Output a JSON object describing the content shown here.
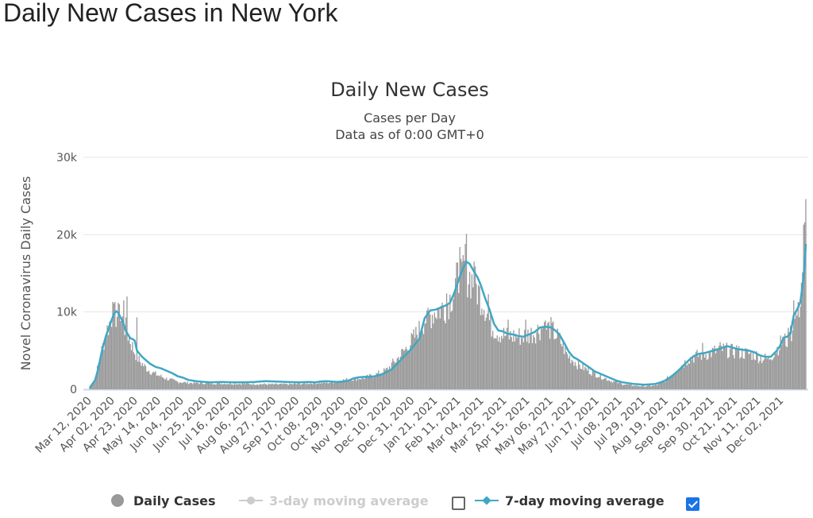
{
  "page": {
    "title": "Daily New Cases in New York"
  },
  "chart_data": {
    "type": "bar+line",
    "title": "Daily New Cases",
    "subtitle": [
      "Cases per Day",
      "Data as of 0:00 GMT+0"
    ],
    "ylabel": "Novel Coronavirus Daily Cases",
    "ylim": [
      0,
      30000
    ],
    "yticks": [
      0,
      10000,
      20000,
      30000
    ],
    "ytick_labels": [
      "0",
      "10k",
      "20k",
      "30k"
    ],
    "x_labels": [
      "Mar 12, 2020",
      "Apr 02, 2020",
      "Apr 23, 2020",
      "May 14, 2020",
      "Jun 04, 2020",
      "Jun 25, 2020",
      "Jul 16, 2020",
      "Aug 06, 2020",
      "Aug 27, 2020",
      "Sep 17, 2020",
      "Oct 08, 2020",
      "Oct 29, 2020",
      "Nov 19, 2020",
      "Dec 10, 2020",
      "Dec 31, 2020",
      "Jan 21, 2021",
      "Feb 11, 2021",
      "Mar 04, 2021",
      "Mar 25, 2021",
      "Apr 15, 2021",
      "May 06, 2021",
      "May 27, 2021",
      "Jun 17, 2021",
      "Jul 08, 2021",
      "Jul 29, 2021",
      "Aug 19, 2021",
      "Sep 09, 2021",
      "Sep 30, 2021",
      "Oct 21, 2021",
      "Nov 11, 2021",
      "Dec 02, 2021"
    ],
    "label_step_days": 21,
    "total_days": 653,
    "daily_cases_key_points": [
      [
        0,
        200
      ],
      [
        5,
        1500
      ],
      [
        10,
        4500
      ],
      [
        15,
        7500
      ],
      [
        20,
        9500
      ],
      [
        25,
        9800
      ],
      [
        30,
        9000
      ],
      [
        35,
        7200
      ],
      [
        40,
        5200
      ],
      [
        45,
        3800
      ],
      [
        50,
        3000
      ],
      [
        55,
        2400
      ],
      [
        60,
        2000
      ],
      [
        70,
        1400
      ],
      [
        80,
        1000
      ],
      [
        90,
        850
      ],
      [
        110,
        800
      ],
      [
        130,
        750
      ],
      [
        150,
        700
      ],
      [
        170,
        650
      ],
      [
        190,
        700
      ],
      [
        200,
        800
      ],
      [
        220,
        900
      ],
      [
        230,
        1200
      ],
      [
        240,
        1400
      ],
      [
        250,
        1500
      ],
      [
        260,
        1900
      ],
      [
        270,
        2500
      ],
      [
        280,
        4000
      ],
      [
        290,
        5700
      ],
      [
        300,
        7800
      ],
      [
        305,
        9200
      ],
      [
        315,
        10300
      ],
      [
        325,
        11000
      ],
      [
        330,
        12500
      ],
      [
        335,
        14500
      ],
      [
        340,
        15500
      ],
      [
        345,
        15000
      ],
      [
        350,
        14000
      ],
      [
        355,
        12500
      ],
      [
        360,
        11000
      ],
      [
        365,
        8500
      ],
      [
        372,
        7500
      ],
      [
        380,
        7000
      ],
      [
        395,
        7000
      ],
      [
        405,
        7500
      ],
      [
        412,
        8200
      ],
      [
        420,
        8000
      ],
      [
        428,
        6500
      ],
      [
        435,
        4500
      ],
      [
        445,
        3200
      ],
      [
        455,
        2400
      ],
      [
        465,
        1700
      ],
      [
        475,
        1100
      ],
      [
        485,
        700
      ],
      [
        495,
        500
      ],
      [
        505,
        400
      ],
      [
        515,
        500
      ],
      [
        522,
        900
      ],
      [
        530,
        2000
      ],
      [
        538,
        3000
      ],
      [
        545,
        4000
      ],
      [
        555,
        4500
      ],
      [
        565,
        4800
      ],
      [
        575,
        5300
      ],
      [
        585,
        5000
      ],
      [
        595,
        4800
      ],
      [
        605,
        4600
      ],
      [
        612,
        4100
      ],
      [
        618,
        4000
      ],
      [
        625,
        5200
      ],
      [
        630,
        6200
      ],
      [
        635,
        6500
      ],
      [
        640,
        8000
      ],
      [
        643,
        9500
      ],
      [
        646,
        11000
      ],
      [
        648,
        14000
      ],
      [
        650,
        18000
      ],
      [
        652,
        20500
      ]
    ],
    "daily_cases_spikes": [
      [
        21,
        11300
      ],
      [
        27,
        11000
      ],
      [
        31,
        11500
      ],
      [
        34,
        12000
      ],
      [
        43,
        9300
      ],
      [
        226,
        1000
      ],
      [
        307,
        10200
      ],
      [
        325,
        12400
      ],
      [
        337,
        18400
      ],
      [
        339,
        16500
      ],
      [
        342,
        18800
      ],
      [
        343,
        20100
      ],
      [
        350,
        16500
      ],
      [
        363,
        12300
      ],
      [
        381,
        9000
      ],
      [
        397,
        9000
      ],
      [
        414,
        8700
      ],
      [
        558,
        6000
      ],
      [
        574,
        6100
      ],
      [
        589,
        5700
      ],
      [
        631,
        6800
      ],
      [
        637,
        7400
      ],
      [
        641,
        11500
      ],
      [
        645,
        11300
      ],
      [
        650,
        21300
      ],
      [
        651,
        21600
      ],
      [
        652,
        24600
      ]
    ],
    "moving_avg_7day": [
      [
        0,
        200
      ],
      [
        5,
        1200
      ],
      [
        8,
        2800
      ],
      [
        10,
        4200
      ],
      [
        12,
        5500
      ],
      [
        15,
        7000
      ],
      [
        18,
        8200
      ],
      [
        20,
        9000
      ],
      [
        22,
        9700
      ],
      [
        24,
        10100
      ],
      [
        26,
        9900
      ],
      [
        28,
        9300
      ],
      [
        30,
        8800
      ],
      [
        33,
        7500
      ],
      [
        37,
        6600
      ],
      [
        39,
        6500
      ],
      [
        41,
        6300
      ],
      [
        43,
        5000
      ],
      [
        47,
        4300
      ],
      [
        50,
        3900
      ],
      [
        55,
        3300
      ],
      [
        60,
        2900
      ],
      [
        65,
        2700
      ],
      [
        70,
        2400
      ],
      [
        75,
        2100
      ],
      [
        80,
        1700
      ],
      [
        85,
        1500
      ],
      [
        90,
        1200
      ],
      [
        95,
        1100
      ],
      [
        100,
        1000
      ],
      [
        110,
        900
      ],
      [
        120,
        950
      ],
      [
        130,
        900
      ],
      [
        140,
        900
      ],
      [
        150,
        950
      ],
      [
        160,
        1050
      ],
      [
        170,
        1000
      ],
      [
        180,
        950
      ],
      [
        190,
        900
      ],
      [
        200,
        950
      ],
      [
        205,
        900
      ],
      [
        210,
        1000
      ],
      [
        215,
        1050
      ],
      [
        220,
        1000
      ],
      [
        225,
        950
      ],
      [
        230,
        1000
      ],
      [
        235,
        1100
      ],
      [
        240,
        1400
      ],
      [
        245,
        1550
      ],
      [
        250,
        1600
      ],
      [
        255,
        1600
      ],
      [
        260,
        1700
      ],
      [
        265,
        1900
      ],
      [
        270,
        2200
      ],
      [
        275,
        2600
      ],
      [
        280,
        3300
      ],
      [
        285,
        4100
      ],
      [
        290,
        4800
      ],
      [
        295,
        5600
      ],
      [
        300,
        6500
      ],
      [
        305,
        9200
      ],
      [
        310,
        10200
      ],
      [
        315,
        10300
      ],
      [
        320,
        10600
      ],
      [
        325,
        10900
      ],
      [
        328,
        11200
      ],
      [
        332,
        12500
      ],
      [
        336,
        14200
      ],
      [
        340,
        15700
      ],
      [
        343,
        16500
      ],
      [
        346,
        16200
      ],
      [
        350,
        15200
      ],
      [
        353,
        14500
      ],
      [
        356,
        13500
      ],
      [
        360,
        11800
      ],
      [
        364,
        10300
      ],
      [
        368,
        8500
      ],
      [
        372,
        7600
      ],
      [
        376,
        7500
      ],
      [
        380,
        7200
      ],
      [
        385,
        7100
      ],
      [
        390,
        6900
      ],
      [
        395,
        6800
      ],
      [
        400,
        7100
      ],
      [
        405,
        7400
      ],
      [
        410,
        8000
      ],
      [
        415,
        8100
      ],
      [
        420,
        8000
      ],
      [
        424,
        7600
      ],
      [
        428,
        7000
      ],
      [
        432,
        6000
      ],
      [
        436,
        4900
      ],
      [
        440,
        4200
      ],
      [
        445,
        3800
      ],
      [
        450,
        3300
      ],
      [
        455,
        2800
      ],
      [
        460,
        2300
      ],
      [
        465,
        2000
      ],
      [
        470,
        1700
      ],
      [
        475,
        1400
      ],
      [
        480,
        1100
      ],
      [
        485,
        900
      ],
      [
        490,
        800
      ],
      [
        495,
        700
      ],
      [
        500,
        650
      ],
      [
        505,
        600
      ],
      [
        510,
        650
      ],
      [
        515,
        700
      ],
      [
        520,
        900
      ],
      [
        525,
        1200
      ],
      [
        530,
        1700
      ],
      [
        535,
        2300
      ],
      [
        540,
        3000
      ],
      [
        545,
        3700
      ],
      [
        550,
        4300
      ],
      [
        555,
        4600
      ],
      [
        560,
        4700
      ],
      [
        565,
        4900
      ],
      [
        570,
        5100
      ],
      [
        575,
        5300
      ],
      [
        580,
        5600
      ],
      [
        585,
        5400
      ],
      [
        590,
        5200
      ],
      [
        595,
        5100
      ],
      [
        600,
        5000
      ],
      [
        605,
        4800
      ],
      [
        610,
        4400
      ],
      [
        615,
        4200
      ],
      [
        620,
        4200
      ],
      [
        625,
        4900
      ],
      [
        628,
        5500
      ],
      [
        632,
        6700
      ],
      [
        635,
        6800
      ],
      [
        638,
        7200
      ],
      [
        641,
        9600
      ],
      [
        644,
        10300
      ],
      [
        647,
        11300
      ],
      [
        650,
        14500
      ],
      [
        652,
        18800
      ]
    ],
    "series": [
      {
        "name": "Daily Cases",
        "kind": "bar",
        "color": "#999999"
      },
      {
        "name": "3-day moving average",
        "kind": "line",
        "color": "#cccccc",
        "enabled": false
      },
      {
        "name": "7-day moving average",
        "kind": "line",
        "color": "#3fa7c4",
        "enabled": true
      }
    ],
    "line_color": "#3fa7c4",
    "bar_color": "#999999"
  },
  "legend": {
    "items": [
      "Daily Cases",
      "3-day moving average",
      "7-day moving average"
    ]
  }
}
